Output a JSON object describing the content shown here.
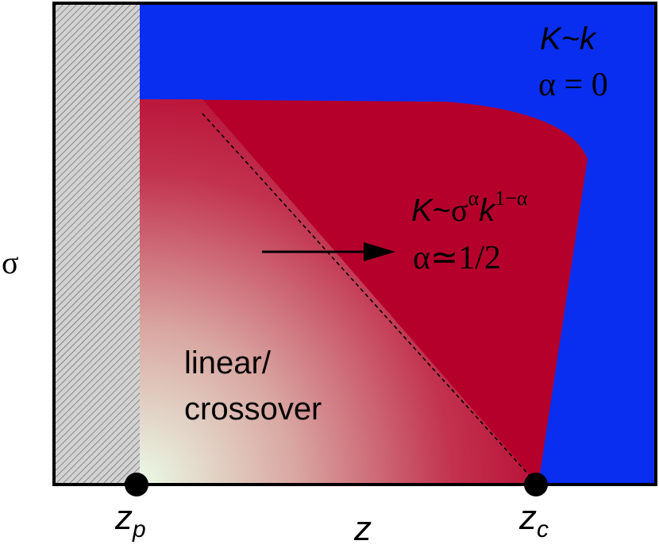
{
  "diagram": {
    "axis_labels": {
      "x": "z",
      "y": "σ"
    },
    "points": {
      "zp": {
        "main": "z",
        "sub": "p"
      },
      "zc": {
        "main": "z",
        "sub": "c"
      }
    },
    "regions": {
      "top_right": {
        "line1_K": "K",
        "line1_rest": "~k",
        "line2": "α = 0"
      },
      "middle": {
        "line1_K": "K",
        "line1_tilde": "~",
        "line1_sigma": "σ",
        "line1_alpha_sup": "α",
        "line1_k": "k",
        "line1_exp": "1−α",
        "line2": "α≃1/2"
      },
      "lower_left": {
        "line1": "linear/",
        "line2": "crossover"
      }
    },
    "colors": {
      "blue": "#0a2ef0",
      "red": "#b5002c",
      "hatch_bg": "#d0d0d0",
      "gradient_light": "#eafbe6"
    }
  }
}
